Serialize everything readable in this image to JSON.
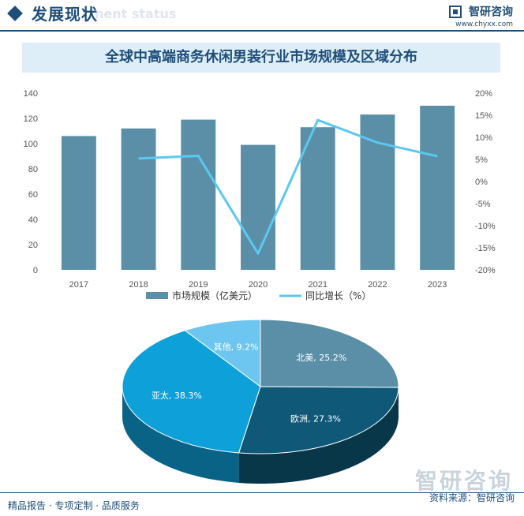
{
  "header": {
    "section_title": "发展现状",
    "section_subtitle": "nent status",
    "brand_name": "智研咨询",
    "brand_url": "www.chyxx.com"
  },
  "chart_title": "全球中高端商务休闲男装行业市场规模及区域分布",
  "footer": {
    "left": "精品报告 · 专项定制 · 品质服务",
    "right": "资料来源：智研咨询",
    "watermark": "智研咨询"
  },
  "colors": {
    "bar": "#5b8fa8",
    "line": "#5bc8f0",
    "brand": "#1f4e79"
  },
  "chart_data": [
    {
      "type": "bar",
      "categories": [
        "2017",
        "2018",
        "2019",
        "2020",
        "2021",
        "2022",
        "2023"
      ],
      "series": [
        {
          "name": "市场规模（亿美元）",
          "type": "bar",
          "axis": "left",
          "values": [
            106,
            112,
            119,
            99,
            113,
            123,
            130
          ]
        },
        {
          "name": "同比增长（%）",
          "type": "line",
          "axis": "right",
          "values": [
            null,
            5.2,
            5.8,
            -16.3,
            13.9,
            8.8,
            5.7
          ]
        }
      ],
      "left_axis": {
        "min": 0,
        "max": 140,
        "ticks": [
          "0",
          "20",
          "40",
          "60",
          "80",
          "100",
          "120",
          "140"
        ]
      },
      "right_axis": {
        "min": -20,
        "max": 20,
        "ticks": [
          "-20%",
          "-15%",
          "-10%",
          "-5%",
          "0%",
          "5%",
          "10%",
          "15%",
          "20%"
        ]
      },
      "legend_position": "bottom"
    },
    {
      "type": "pie",
      "slices": [
        {
          "label": "北美",
          "value": 25.2,
          "text": "北美, 25.2%",
          "color": "#5b8fa8"
        },
        {
          "label": "欧洲",
          "value": 27.3,
          "text": "欧洲, 27.3%",
          "color": "#0f5878"
        },
        {
          "label": "亚太",
          "value": 38.3,
          "text": "亚太, 38.3%",
          "color": "#0ea0d8"
        },
        {
          "label": "其他",
          "value": 9.2,
          "text": "其他, 9.2%",
          "color": "#6cc6ef"
        }
      ]
    }
  ]
}
